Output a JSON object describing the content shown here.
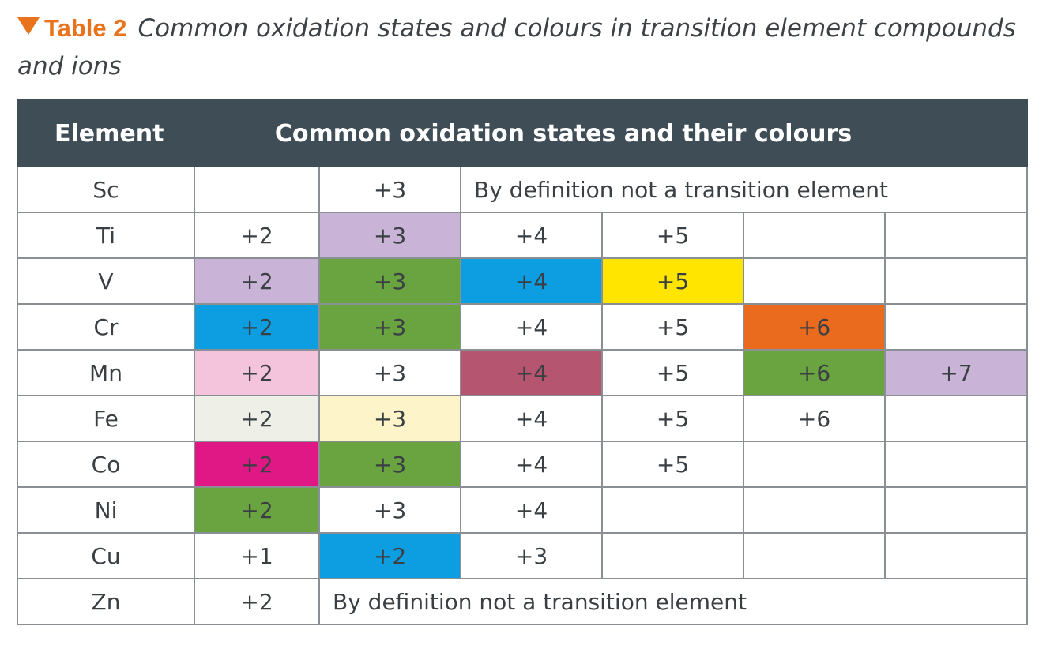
{
  "caption": {
    "number": "Table 2",
    "title": "Common oxidation states and colours in transition element compounds and ions",
    "accent_color": "#e8731c"
  },
  "table": {
    "headers": {
      "element": "Element",
      "states": "Common oxidation states and their colours"
    },
    "header_bg": "#3f4d56",
    "rows": [
      {
        "element": "Sc",
        "cells": [
          {
            "text": "",
            "bg": "#ffffff"
          },
          {
            "text": "+3",
            "bg": "#ffffff"
          },
          {
            "text": "By definition not a transition element",
            "bg": "#ffffff",
            "span": 4,
            "note": true
          }
        ]
      },
      {
        "element": "Ti",
        "cells": [
          {
            "text": "+2",
            "bg": "#ffffff"
          },
          {
            "text": "+3",
            "bg": "#c9b3d6"
          },
          {
            "text": "+4",
            "bg": "#ffffff"
          },
          {
            "text": "+5",
            "bg": "#ffffff"
          },
          {
            "text": "",
            "bg": "#ffffff"
          },
          {
            "text": "",
            "bg": "#ffffff"
          }
        ]
      },
      {
        "element": "V",
        "cells": [
          {
            "text": "+2",
            "bg": "#c9b3d6"
          },
          {
            "text": "+3",
            "bg": "#6aa441"
          },
          {
            "text": "+4",
            "bg": "#0c9ee0"
          },
          {
            "text": "+5",
            "bg": "#ffe500"
          },
          {
            "text": "",
            "bg": "#ffffff"
          },
          {
            "text": "",
            "bg": "#ffffff"
          }
        ]
      },
      {
        "element": "Cr",
        "cells": [
          {
            "text": "+2",
            "bg": "#0c9ee0"
          },
          {
            "text": "+3",
            "bg": "#6aa441"
          },
          {
            "text": "+4",
            "bg": "#ffffff"
          },
          {
            "text": "+5",
            "bg": "#ffffff"
          },
          {
            "text": "+6",
            "bg": "#ea6b1e"
          },
          {
            "text": "",
            "bg": "#ffffff"
          }
        ]
      },
      {
        "element": "Mn",
        "cells": [
          {
            "text": "+2",
            "bg": "#f4c3dc"
          },
          {
            "text": "+3",
            "bg": "#ffffff"
          },
          {
            "text": "+4",
            "bg": "#b65570"
          },
          {
            "text": "+5",
            "bg": "#ffffff"
          },
          {
            "text": "+6",
            "bg": "#6aa441"
          },
          {
            "text": "+7",
            "bg": "#c9b3d6"
          }
        ]
      },
      {
        "element": "Fe",
        "cells": [
          {
            "text": "+2",
            "bg": "#eeefe7"
          },
          {
            "text": "+3",
            "bg": "#fdf5c9"
          },
          {
            "text": "+4",
            "bg": "#ffffff"
          },
          {
            "text": "+5",
            "bg": "#ffffff"
          },
          {
            "text": "+6",
            "bg": "#ffffff"
          },
          {
            "text": "",
            "bg": "#ffffff"
          }
        ]
      },
      {
        "element": "Co",
        "cells": [
          {
            "text": "+2",
            "bg": "#df1885"
          },
          {
            "text": "+3",
            "bg": "#6aa441"
          },
          {
            "text": "+4",
            "bg": "#ffffff"
          },
          {
            "text": "+5",
            "bg": "#ffffff"
          },
          {
            "text": "",
            "bg": "#ffffff"
          },
          {
            "text": "",
            "bg": "#ffffff"
          }
        ]
      },
      {
        "element": "Ni",
        "cells": [
          {
            "text": "+2",
            "bg": "#6aa441"
          },
          {
            "text": "+3",
            "bg": "#ffffff"
          },
          {
            "text": "+4",
            "bg": "#ffffff"
          },
          {
            "text": "",
            "bg": "#ffffff"
          },
          {
            "text": "",
            "bg": "#ffffff"
          },
          {
            "text": "",
            "bg": "#ffffff"
          }
        ]
      },
      {
        "element": "Cu",
        "cells": [
          {
            "text": "+1",
            "bg": "#ffffff"
          },
          {
            "text": "+2",
            "bg": "#0c9ee0"
          },
          {
            "text": "+3",
            "bg": "#ffffff"
          },
          {
            "text": "",
            "bg": "#ffffff"
          },
          {
            "text": "",
            "bg": "#ffffff"
          },
          {
            "text": "",
            "bg": "#ffffff"
          }
        ]
      },
      {
        "element": "Zn",
        "cells": [
          {
            "text": "+2",
            "bg": "#ffffff"
          },
          {
            "text": "By definition not a transition element",
            "bg": "#ffffff",
            "span": 5,
            "note": true
          }
        ]
      }
    ]
  }
}
